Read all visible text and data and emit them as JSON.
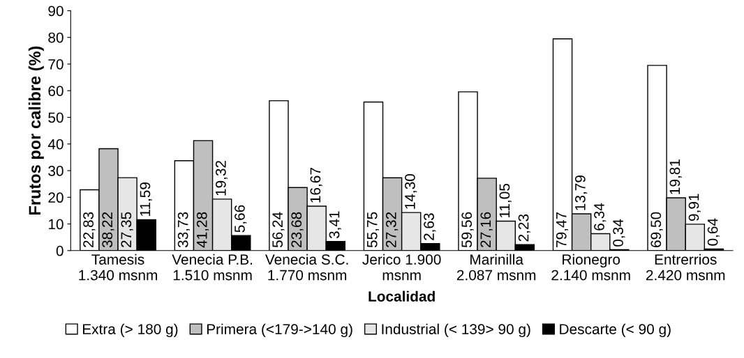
{
  "chart_data": {
    "type": "bar",
    "xlabel": "Localidad",
    "ylabel": "Frutos por calibre (%)",
    "categories": [
      "Tamesis\n1.340 msnm",
      "Venecia P.B.\n1.510 msnm",
      "Venecia S.C.\n1.770 msnm",
      "Jerico 1.900\nmsnm",
      "Marinilla\n2.087 msnm",
      "Rionegro\n2.140 msnm",
      "Entrerrios\n2.420 msnm"
    ],
    "series": [
      {
        "name": "Extra (> 180 g)",
        "color": "#ffffff",
        "values": [
          22.83,
          33.73,
          56.24,
          55.75,
          59.56,
          79.47,
          69.5
        ],
        "value_labels": [
          "22,83",
          "33,73",
          "56,24",
          "55,75",
          "59,56",
          "79,47",
          "69,50"
        ]
      },
      {
        "name": "Primera (<179->140 g)",
        "color": "#bfbfbf",
        "values": [
          38.22,
          41.28,
          23.68,
          27.32,
          27.16,
          13.79,
          19.81
        ],
        "value_labels": [
          "38,22",
          "41,28",
          "23,68",
          "27,32",
          "27,16",
          "13,79",
          "19,81"
        ]
      },
      {
        "name": "Industrial (< 139> 90 g)",
        "color": "#e6e6e6",
        "values": [
          27.35,
          19.32,
          16.67,
          14.3,
          11.05,
          6.34,
          9.91
        ],
        "value_labels": [
          "27,35",
          "19,32",
          "16,67",
          "14,30",
          "11,05",
          "6,34",
          "9,91"
        ]
      },
      {
        "name": "Descarte (< 90 g)",
        "color": "#000000",
        "values": [
          11.59,
          5.66,
          3.41,
          2.63,
          2.23,
          0.34,
          0.64
        ],
        "value_labels": [
          "11,59",
          "5,66",
          "3,41",
          "2,63",
          "2,23",
          "0,34",
          "0,64"
        ]
      }
    ],
    "ylim": [
      0,
      90
    ],
    "yticks": [
      0,
      10,
      20,
      30,
      40,
      50,
      60,
      70,
      80,
      90
    ],
    "grid": false,
    "legend": "bottom"
  }
}
